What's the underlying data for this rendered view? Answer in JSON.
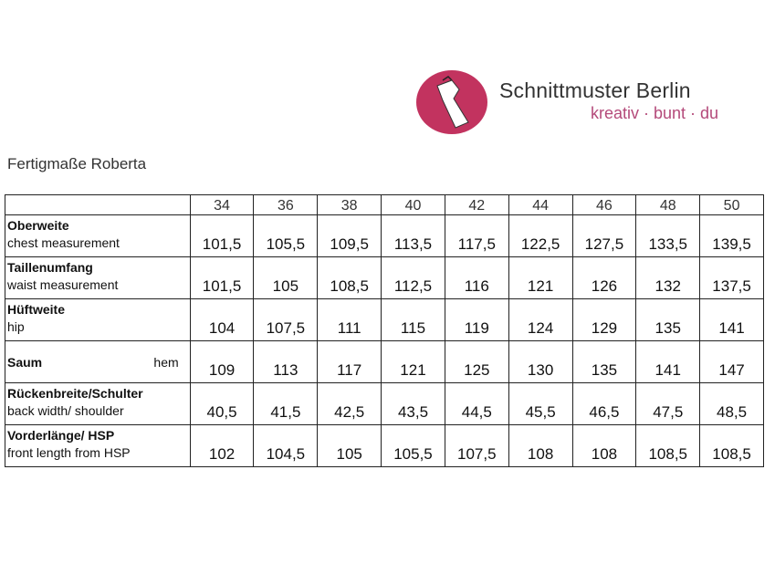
{
  "brand": {
    "name": "Schnittmuster Berlin",
    "tagline": "kreativ · bunt · du",
    "logo_color": "#c2335f",
    "icon": "dress-on-hanger-icon"
  },
  "title": "Fertigmaße Roberta",
  "table": {
    "sizes": [
      "34",
      "36",
      "38",
      "40",
      "42",
      "44",
      "46",
      "48",
      "50"
    ],
    "rows": [
      {
        "label_de": "Oberweite",
        "label_en": "chest measurement",
        "values": [
          "101,5",
          "105,5",
          "109,5",
          "113,5",
          "117,5",
          "122,5",
          "127,5",
          "133,5",
          "139,5"
        ]
      },
      {
        "label_de": "Taillenumfang",
        "label_en": "waist measurement",
        "values": [
          "101,5",
          "105",
          "108,5",
          "112,5",
          "116",
          "121",
          "126",
          "132",
          "137,5"
        ]
      },
      {
        "label_de": "Hüftweite",
        "label_en": "hip",
        "values": [
          "104",
          "107,5",
          "111",
          "115",
          "119",
          "124",
          "129",
          "135",
          "141"
        ]
      },
      {
        "label_de": "Saum",
        "label_en": "hem",
        "values": [
          "109",
          "113",
          "117",
          "121",
          "125",
          "130",
          "135",
          "141",
          "147"
        ]
      },
      {
        "label_de": "Rückenbreite/Schulter",
        "label_en": "back width/ shoulder",
        "values": [
          "40,5",
          "41,5",
          "42,5",
          "43,5",
          "44,5",
          "45,5",
          "46,5",
          "47,5",
          "48,5"
        ]
      },
      {
        "label_de": "Vorderlänge/ HSP",
        "label_en": "front length from HSP",
        "values": [
          "102",
          "104,5",
          "105",
          "105,5",
          "107,5",
          "108",
          "108",
          "108,5",
          "108,5"
        ]
      }
    ]
  }
}
